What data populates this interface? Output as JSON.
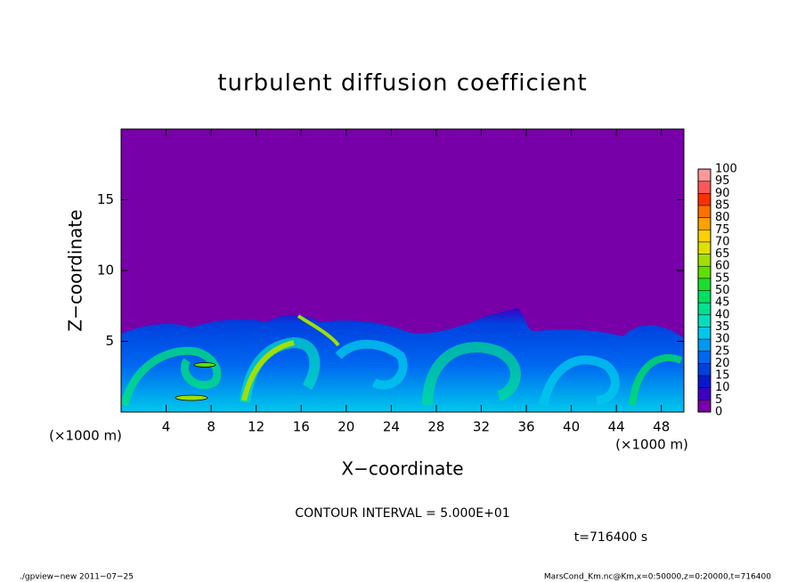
{
  "chart_data": {
    "type": "contour",
    "title": "turbulent diffusion coefficient",
    "x_label": "X−coordinate",
    "y_label": "Z−coordinate",
    "x_unit": "(×1000 m)",
    "y_unit": "(×1000 m)",
    "xlim": [
      0,
      50
    ],
    "xticks": [
      4,
      8,
      12,
      16,
      20,
      24,
      28,
      32,
      36,
      40,
      44,
      48
    ],
    "ylim": [
      0,
      20
    ],
    "yticks": [
      5,
      10,
      15
    ],
    "colorbar": {
      "levels": [
        0,
        5,
        10,
        15,
        20,
        25,
        30,
        35,
        40,
        45,
        50,
        55,
        60,
        65,
        70,
        75,
        80,
        85,
        90,
        95,
        100
      ],
      "colors": [
        "#7800a8",
        "#3c00c0",
        "#0818d0",
        "#0040e0",
        "#0068f0",
        "#0098f4",
        "#00c8ec",
        "#00e0c0",
        "#00e090",
        "#00e060",
        "#18e028",
        "#60e000",
        "#a0e000",
        "#e0e000",
        "#ffd000",
        "#ffa000",
        "#ff7000",
        "#ff3000",
        "#ff5858",
        "#ff9898"
      ]
    },
    "note": "CONTOUR INTERVAL = 5.000E+01",
    "time_label": "t=716400 s",
    "footer_left": "./gpview−new  2011−07−25",
    "footer_right": "MarsCond_Km.nc@Km,x=0:50000,z=0:20000,t=716400"
  }
}
